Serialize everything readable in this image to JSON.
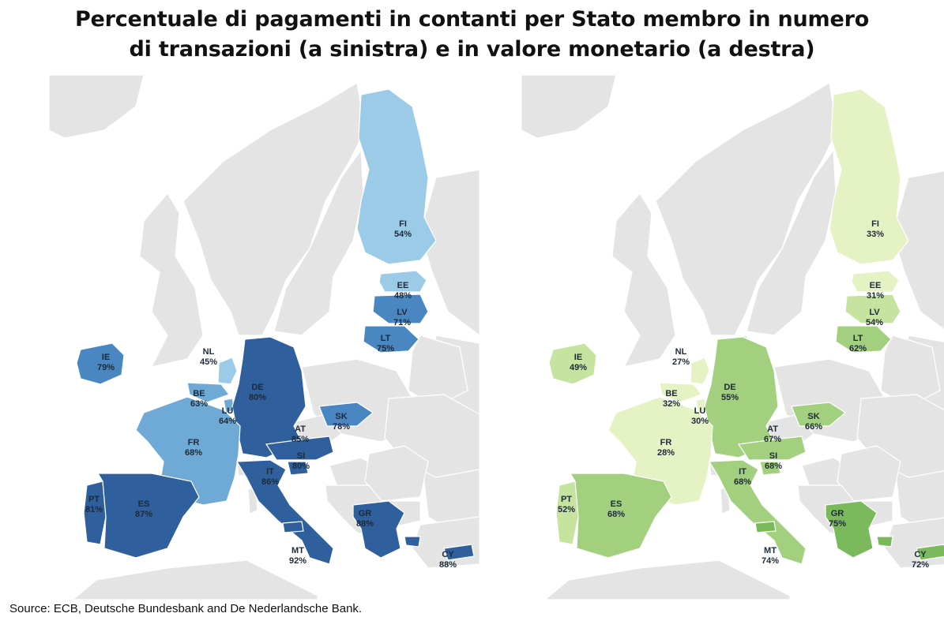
{
  "title_line1": "Percentuale di pagamenti in contanti per Stato membro in numero",
  "title_line2": "di transazioni (a sinistra) e in valore monetario (a destra)",
  "source": "Source: ECB, Deutsche Bundesbank and De Nederlandsche Bank.",
  "colors": {
    "land_gray": "#e4e4e4",
    "land_border": "#ffffff",
    "sea": "#ffffff"
  },
  "maps": [
    {
      "id": "transactions",
      "palette": [
        "#c5e3f3",
        "#9ccbe8",
        "#6fa9d6",
        "#4a86c2",
        "#2f5f9c"
      ],
      "countries": [
        {
          "code": "FI",
          "label": "54%"
        },
        {
          "code": "EE",
          "label": "48%"
        },
        {
          "code": "LV",
          "label": "71%"
        },
        {
          "code": "LT",
          "label": "75%"
        },
        {
          "code": "IE",
          "label": "79%"
        },
        {
          "code": "NL",
          "label": "45%"
        },
        {
          "code": "BE",
          "label": "63%"
        },
        {
          "code": "LU",
          "label": "64%"
        },
        {
          "code": "DE",
          "label": "80%"
        },
        {
          "code": "FR",
          "label": "68%"
        },
        {
          "code": "AT",
          "label": "85%"
        },
        {
          "code": "SK",
          "label": "78%"
        },
        {
          "code": "SI",
          "label": "80%"
        },
        {
          "code": "IT",
          "label": "86%"
        },
        {
          "code": "PT",
          "label": "81%"
        },
        {
          "code": "ES",
          "label": "87%"
        },
        {
          "code": "GR",
          "label": "88%"
        },
        {
          "code": "MT",
          "label": "92%"
        },
        {
          "code": "CY",
          "label": "88%"
        }
      ]
    },
    {
      "id": "value",
      "palette": [
        "#e4f2c4",
        "#c6e3a0",
        "#a3d07e",
        "#7ab95c",
        "#4f9a3a"
      ],
      "countries": [
        {
          "code": "FI",
          "label": "33%"
        },
        {
          "code": "EE",
          "label": "31%"
        },
        {
          "code": "LV",
          "label": "54%"
        },
        {
          "code": "LT",
          "label": "62%"
        },
        {
          "code": "IE",
          "label": "49%"
        },
        {
          "code": "NL",
          "label": "27%"
        },
        {
          "code": "BE",
          "label": "32%"
        },
        {
          "code": "LU",
          "label": "30%"
        },
        {
          "code": "DE",
          "label": "55%"
        },
        {
          "code": "FR",
          "label": "28%"
        },
        {
          "code": "AT",
          "label": "67%"
        },
        {
          "code": "SK",
          "label": "66%"
        },
        {
          "code": "SI",
          "label": "68%"
        },
        {
          "code": "IT",
          "label": "68%"
        },
        {
          "code": "PT",
          "label": "52%"
        },
        {
          "code": "ES",
          "label": "68%"
        },
        {
          "code": "GR",
          "label": "75%"
        },
        {
          "code": "MT",
          "label": "74%"
        },
        {
          "code": "CY",
          "label": "72%"
        }
      ]
    }
  ]
}
